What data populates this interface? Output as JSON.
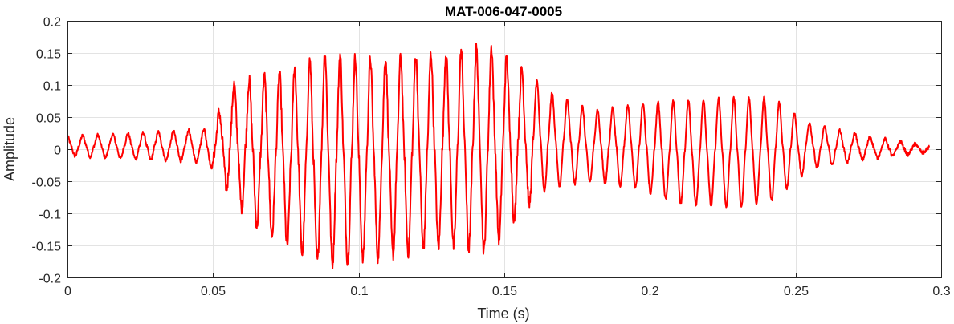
{
  "chart_data": {
    "type": "line",
    "title": "MAT-006-047-0005",
    "xlabel": "Time (s)",
    "ylabel": "Amplitude",
    "xlim": [
      0,
      0.3
    ],
    "ylim": [
      -0.2,
      0.2
    ],
    "grid": true,
    "x_ticks": [
      "0",
      "0.05",
      "0.1",
      "0.15",
      "0.2",
      "0.25",
      "0.3"
    ],
    "y_ticks": [
      "-0.2",
      "-0.15",
      "-0.1",
      "-0.05",
      "0",
      "0.05",
      "0.1",
      "0.15",
      "0.2"
    ],
    "line_color": "#ff0000",
    "series": [
      {
        "duration_s": 0.296,
        "period_s": 0.0052,
        "envelope": [
          {
            "t": 0.0,
            "pos": 0.02,
            "neg": -0.01
          },
          {
            "t": 0.045,
            "pos": 0.03,
            "neg": -0.02
          },
          {
            "t": 0.05,
            "pos": 0.035,
            "neg": -0.03
          },
          {
            "t": 0.056,
            "pos": 0.1,
            "neg": -0.07
          },
          {
            "t": 0.065,
            "pos": 0.11,
            "neg": -0.12
          },
          {
            "t": 0.075,
            "pos": 0.12,
            "neg": -0.15
          },
          {
            "t": 0.088,
            "pos": 0.15,
            "neg": -0.18
          },
          {
            "t": 0.105,
            "pos": 0.14,
            "neg": -0.17
          },
          {
            "t": 0.13,
            "pos": 0.15,
            "neg": -0.15
          },
          {
            "t": 0.145,
            "pos": 0.16,
            "neg": -0.16
          },
          {
            "t": 0.155,
            "pos": 0.13,
            "neg": -0.1
          },
          {
            "t": 0.165,
            "pos": 0.09,
            "neg": -0.06
          },
          {
            "t": 0.18,
            "pos": 0.06,
            "neg": -0.05
          },
          {
            "t": 0.195,
            "pos": 0.07,
            "neg": -0.06
          },
          {
            "t": 0.21,
            "pos": 0.075,
            "neg": -0.085
          },
          {
            "t": 0.23,
            "pos": 0.08,
            "neg": -0.09
          },
          {
            "t": 0.242,
            "pos": 0.08,
            "neg": -0.08
          },
          {
            "t": 0.255,
            "pos": 0.04,
            "neg": -0.03
          },
          {
            "t": 0.275,
            "pos": 0.02,
            "neg": -0.015
          },
          {
            "t": 0.296,
            "pos": 0.005,
            "neg": -0.005
          }
        ]
      }
    ]
  }
}
